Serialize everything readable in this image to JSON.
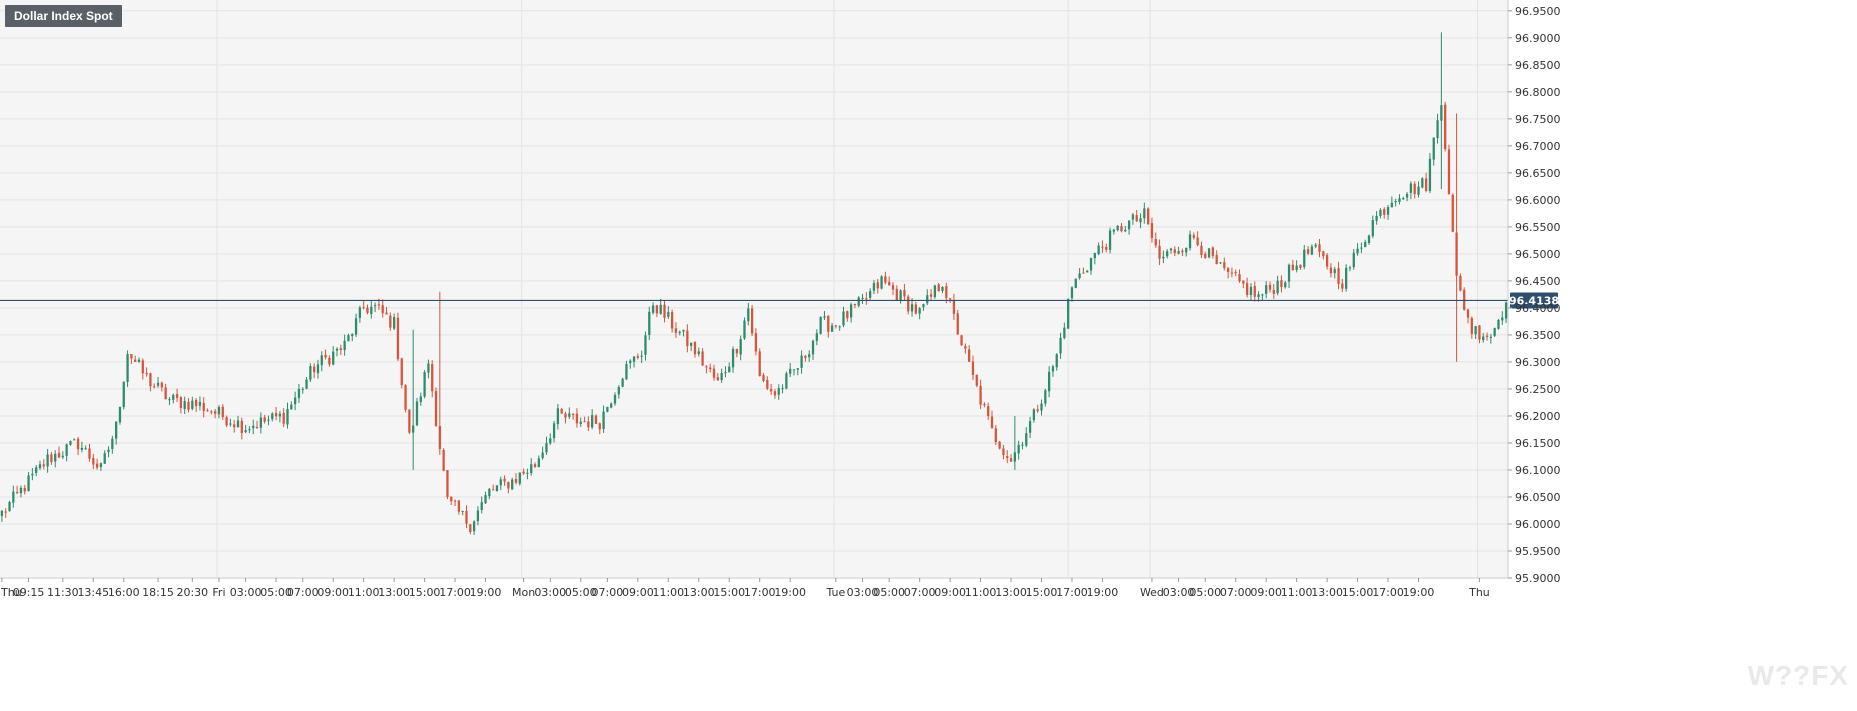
{
  "title": "Dollar Index Spot",
  "watermark": "W??FX",
  "colors": {
    "up": "#2e8b6b",
    "down": "#d9533a",
    "plot_bg": "#f5f5f5",
    "grid": "#e3e3e3",
    "price_line": "#2f4f6f",
    "price_label_bg": "#2f4f6f"
  },
  "chart_data": {
    "type": "candlestick",
    "current_price": 96.4138,
    "current_price_label": "96.4138",
    "ylim": [
      95.9,
      96.97
    ],
    "y_ticks": [
      95.9,
      95.95,
      96.0,
      96.05,
      96.1,
      96.15,
      96.2,
      96.25,
      96.3,
      96.35,
      96.4,
      96.45,
      96.5,
      96.55,
      96.6,
      96.65,
      96.7,
      96.75,
      96.8,
      96.85,
      96.9,
      96.95
    ],
    "y_tick_labels": [
      "95.9000",
      "95.9500",
      "96.0000",
      "96.0500",
      "96.1000",
      "96.1500",
      "96.2000",
      "96.2500",
      "96.3000",
      "96.3500",
      "96.4000",
      "96.4500",
      "96.5000",
      "96.5500",
      "96.6000",
      "96.6500",
      "96.7000",
      "96.7500",
      "96.8000",
      "96.8500",
      "96.9000",
      "96.9500"
    ],
    "x_tick_labels": [
      "Thu",
      "09:15",
      "11:30",
      "13:45",
      "16:00",
      "18:15",
      "20:30",
      "Fri",
      "03:00",
      "05:00",
      "07:00",
      "09:00",
      "11:00",
      "13:00",
      "15:00",
      "17:00",
      "19:00",
      "Mon",
      "03:00",
      "05:00",
      "07:00",
      "09:00",
      "11:00",
      "13:00",
      "15:00",
      "17:00",
      "19:00",
      "Tue",
      "03:00",
      "05:00",
      "07:00",
      "09:00",
      "11:00",
      "13:00",
      "15:00",
      "17:00",
      "19:00",
      "Wed",
      "03:00",
      "05:00",
      "07:00",
      "09:00",
      "11:00",
      "13:00",
      "15:00",
      "17:00",
      "19:00",
      "Thu"
    ],
    "x_tick_index": [
      0,
      7,
      16,
      24,
      32,
      41,
      50,
      57,
      64,
      72,
      79,
      87,
      95,
      103,
      111,
      119,
      127,
      137,
      144,
      152,
      159,
      167,
      175,
      183,
      191,
      199,
      207,
      219,
      226,
      233,
      241,
      249,
      257,
      265,
      273,
      281,
      289,
      302,
      309,
      316,
      324,
      332,
      340,
      348,
      356,
      364,
      372,
      388
    ],
    "candle_count": 396,
    "anchor_closes": [
      [
        0,
        96.02
      ],
      [
        12,
        96.12
      ],
      [
        20,
        96.15
      ],
      [
        26,
        96.1
      ],
      [
        30,
        96.18
      ],
      [
        33,
        96.32
      ],
      [
        38,
        96.27
      ],
      [
        44,
        96.23
      ],
      [
        52,
        96.22
      ],
      [
        58,
        96.2
      ],
      [
        64,
        96.18
      ],
      [
        74,
        96.2
      ],
      [
        82,
        96.29
      ],
      [
        90,
        96.33
      ],
      [
        95,
        96.4
      ],
      [
        98,
        96.4
      ],
      [
        103,
        96.37
      ],
      [
        107,
        96.16
      ],
      [
        112,
        96.3
      ],
      [
        117,
        96.04
      ],
      [
        123,
        96.0
      ],
      [
        128,
        96.06
      ],
      [
        134,
        96.08
      ],
      [
        140,
        96.11
      ],
      [
        146,
        96.2
      ],
      [
        152,
        96.19
      ],
      [
        157,
        96.19
      ],
      [
        163,
        96.28
      ],
      [
        168,
        96.32
      ],
      [
        171,
        96.41
      ],
      [
        176,
        96.37
      ],
      [
        182,
        96.32
      ],
      [
        188,
        96.26
      ],
      [
        193,
        96.33
      ],
      [
        196,
        96.4
      ],
      [
        199,
        96.27
      ],
      [
        203,
        96.24
      ],
      [
        210,
        96.3
      ],
      [
        215,
        96.37
      ],
      [
        219,
        96.37
      ],
      [
        226,
        96.41
      ],
      [
        231,
        96.45
      ],
      [
        236,
        96.42
      ],
      [
        241,
        96.39
      ],
      [
        247,
        96.45
      ],
      [
        250,
        96.38
      ],
      [
        255,
        96.27
      ],
      [
        260,
        96.17
      ],
      [
        265,
        96.12
      ],
      [
        271,
        96.2
      ],
      [
        277,
        96.31
      ],
      [
        281,
        96.44
      ],
      [
        287,
        96.5
      ],
      [
        294,
        96.55
      ],
      [
        300,
        96.57
      ],
      [
        304,
        96.49
      ],
      [
        313,
        96.53
      ],
      [
        320,
        96.47
      ],
      [
        330,
        96.42
      ],
      [
        336,
        96.45
      ],
      [
        344,
        96.51
      ],
      [
        352,
        96.45
      ],
      [
        360,
        96.56
      ],
      [
        366,
        96.61
      ],
      [
        374,
        96.63
      ],
      [
        378,
        96.79
      ],
      [
        382,
        96.45
      ],
      [
        386,
        96.36
      ],
      [
        391,
        96.35
      ],
      [
        395,
        96.41
      ]
    ],
    "spikes": [
      [
        108,
        96.1,
        96.36
      ],
      [
        115,
        96.37,
        96.43
      ],
      [
        266,
        96.1,
        96.2
      ],
      [
        378,
        96.62,
        96.91
      ],
      [
        382,
        96.3,
        96.76
      ]
    ]
  }
}
